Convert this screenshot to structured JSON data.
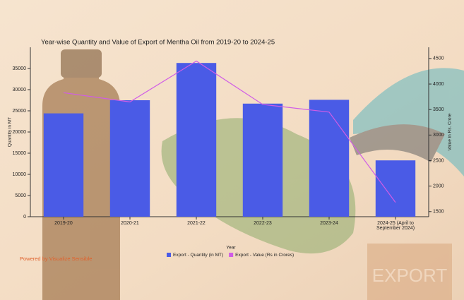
{
  "chart_data": {
    "type": "bar-line",
    "title": "Year-wise Quantity and Value of Export of Mentha Oil from 2019-20 to 2024-25",
    "x_label": "Year",
    "y_label": "Quantity in MT",
    "y2_label": "Value in Rs. Crore",
    "categories": [
      "2019-20",
      "2020-21",
      "2021-22",
      "2022-23",
      "2023-24",
      "2024-25 (April to September 2024)"
    ],
    "series": [
      {
        "name": "Export - Quantity (in MT)",
        "type": "bar",
        "color": "#4a5be6",
        "values": [
          24400,
          27500,
          36300,
          26700,
          27600,
          13300
        ]
      },
      {
        "name": "Export - Value (Rs in Crores)",
        "type": "line",
        "axis": "y2",
        "color": "#d05ce6",
        "values": [
          3830,
          3650,
          4450,
          3600,
          3450,
          1680
        ]
      }
    ],
    "ylim": [
      0,
      40000
    ],
    "yticks": [
      0,
      5000,
      10000,
      15000,
      20000,
      25000,
      30000,
      35000
    ],
    "y2lim": [
      1400,
      4720
    ],
    "y2ticks": [
      1500,
      2000,
      2500,
      3000,
      3500,
      4000,
      4500
    ],
    "legend": "bottom",
    "credit": "Powered by Visualize Sensible"
  },
  "decor": {
    "box_label": "EXPORT"
  }
}
